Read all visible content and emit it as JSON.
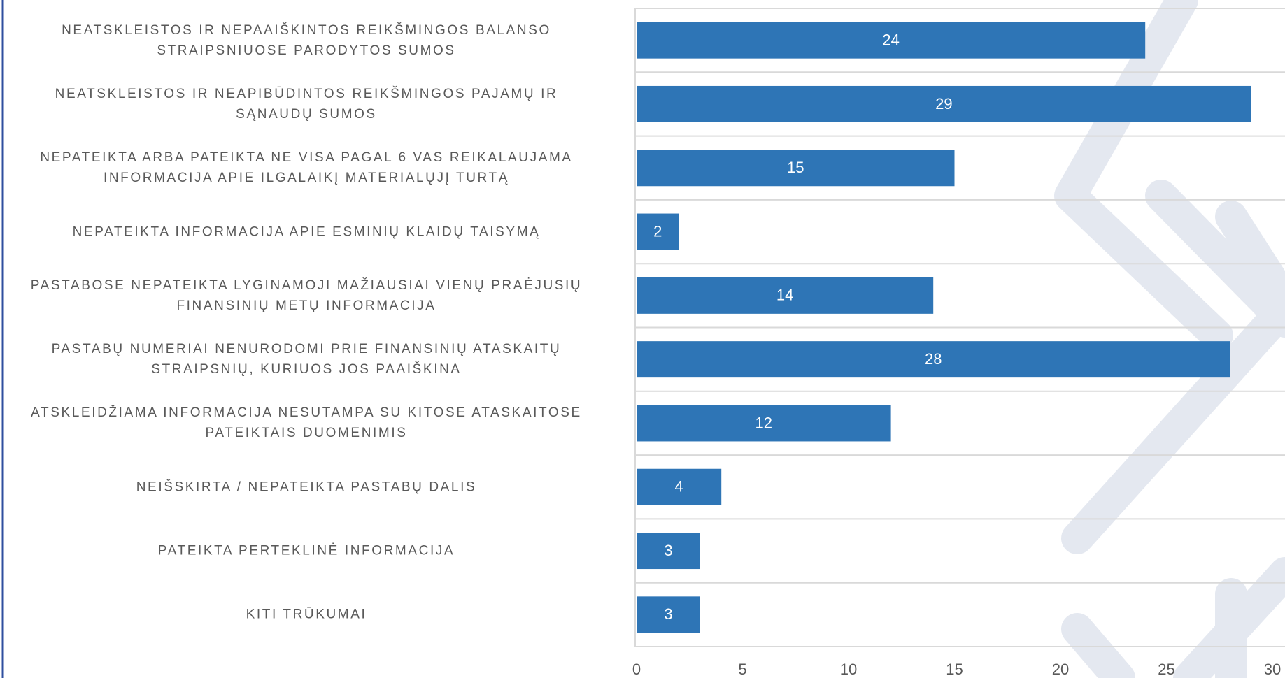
{
  "chart_data": {
    "type": "bar",
    "orientation": "horizontal",
    "categories": [
      "NEATSKLEISTOS IR NEPAAIŠKINTOS REIKŠMINGOS BALANSO\nSTRAIPSNIUOSE PARODYTOS SUMOS",
      "NEATSKLEISTOS IR NEAPIBŪDINTOS REIKŠMINGOS PAJAMŲ IR\nSĄNAUDŲ SUMOS",
      "NEPATEIKTA ARBA PATEIKTA NE VISA PAGAL 6 VAS REIKALAUJAMA\nINFORMACIJA APIE ILGALAIKĮ MATERIALŲJĮ TURTĄ",
      "NEPATEIKTA INFORMACIJA APIE ESMINIŲ KLAIDŲ TAISYMĄ",
      "PASTABOSE NEPATEIKTA LYGINAMOJI MAŽIAUSIAI VIENŲ PRAĖJUSIŲ\nFINANSINIŲ METŲ INFORMACIJA",
      "PASTABŲ NUMERIAI NENURODOMI PRIE FINANSINIŲ ATASKAITŲ\nSTRAIPSNIŲ, KURIUOS JOS PAAIŠKINA",
      "ATSKLEIDŽIAMA INFORMACIJA NESUTAMPA SU KITOSE ATASKAITOSE\nPATEIKTAIS DUOMENIMIS",
      "NEIŠSKIRTA / NEPATEIKTA PASTABŲ DALIS",
      "PATEIKTA PERTEKLINĖ INFORMACIJA",
      "KITI TRŪKUMAI"
    ],
    "values": [
      24,
      29,
      15,
      2,
      14,
      28,
      12,
      4,
      3,
      3
    ],
    "color": "#2e75b6",
    "xlim": [
      0,
      30
    ],
    "xticks": [
      0,
      5,
      10,
      15,
      20,
      25,
      30
    ]
  }
}
